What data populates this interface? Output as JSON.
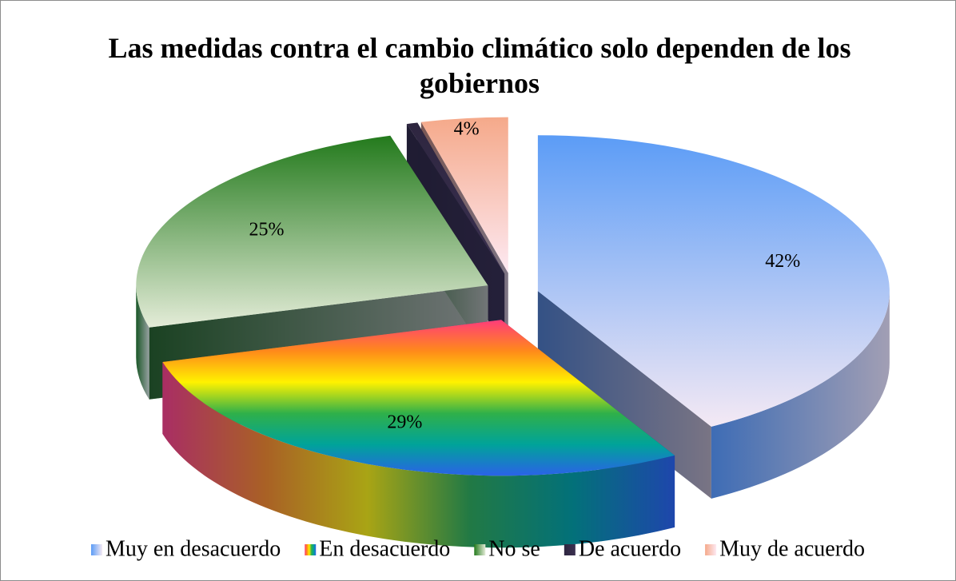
{
  "chart_data": {
    "type": "pie3d",
    "title": "Las medidas contra el cambio climático solo dependen de los gobiernos",
    "categories": [
      "Muy en desacuerdo",
      "En desacuerdo",
      "No se",
      "De acuerdo",
      "Muy de acuerdo"
    ],
    "values": [
      42,
      29,
      25,
      0.5,
      4
    ],
    "value_labels": [
      "42%",
      "29%",
      "25%",
      null,
      "4%"
    ],
    "colors": [
      [
        "#5b9cf6",
        "#f4e9f4"
      ],
      [
        "#ff3c7a",
        "#ff8a1a",
        "#fff200",
        "#2fb04a",
        "#00a39a",
        "#2a62e8"
      ],
      [
        "#237a1c",
        "#e4ecd8"
      ],
      [
        "#2e2640",
        "#3a3050"
      ],
      [
        "#f5a98a",
        "#fde9f2"
      ]
    ],
    "legend": "bottom"
  }
}
